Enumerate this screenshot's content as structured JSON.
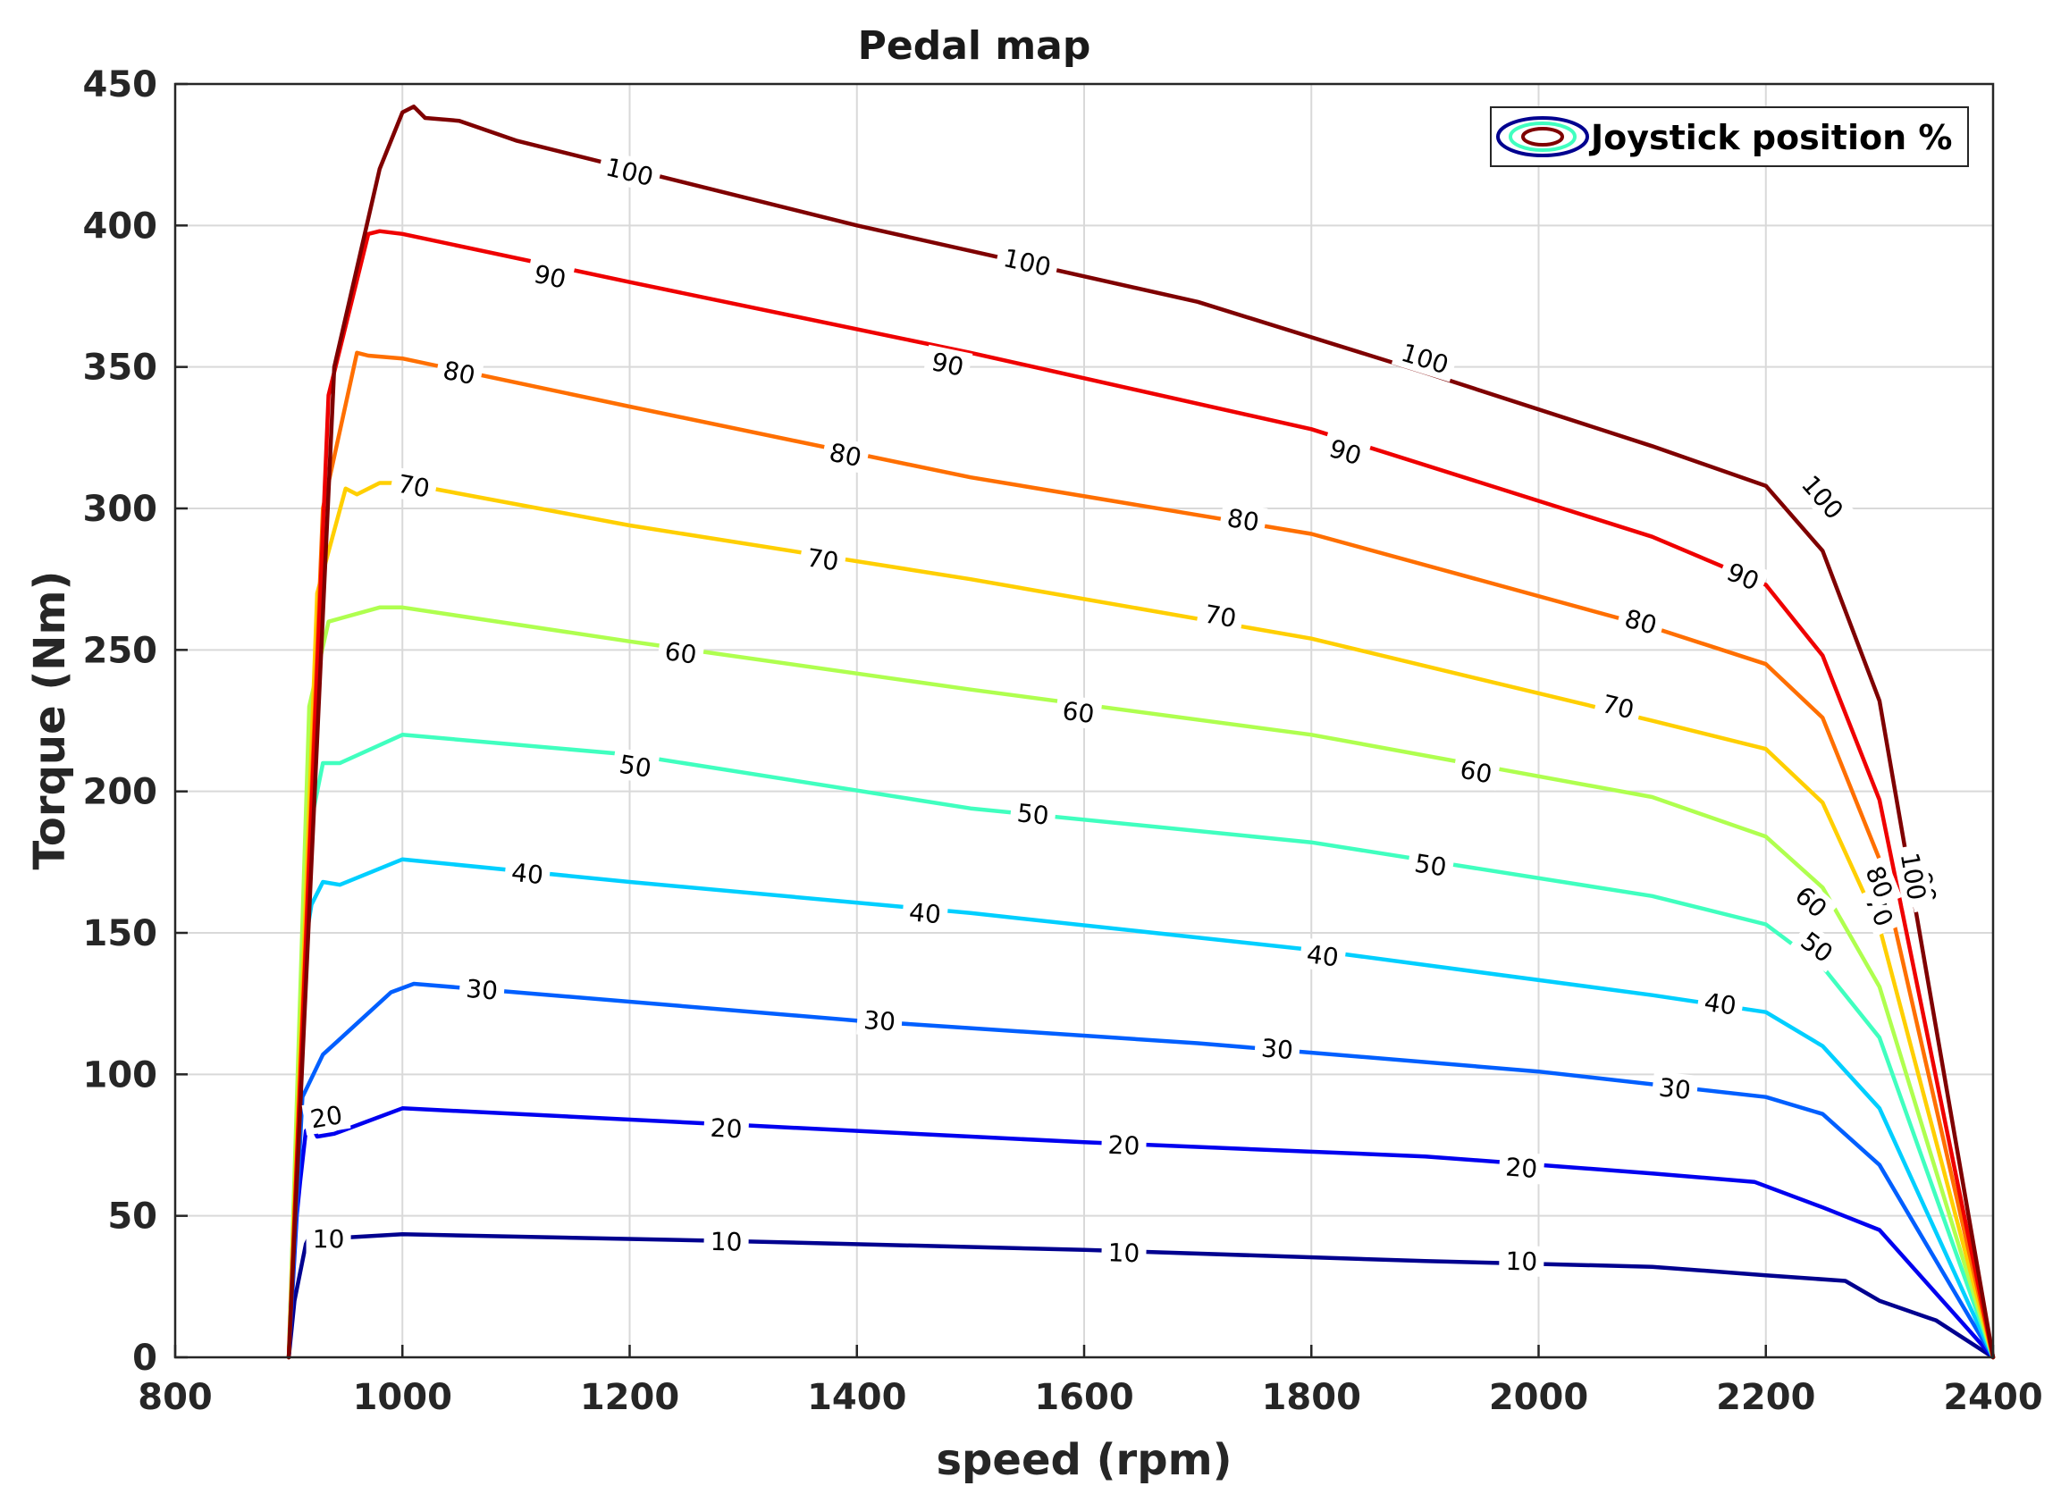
{
  "chart_data": {
    "type": "line",
    "title": "Pedal map",
    "xlabel": "speed (rpm)",
    "ylabel": "Torque (Nm)",
    "xlim": [
      800,
      2400
    ],
    "ylim": [
      0,
      450
    ],
    "x_ticks": [
      800,
      1000,
      1200,
      1400,
      1600,
      1800,
      2000,
      2200,
      2400
    ],
    "y_ticks": [
      0,
      50,
      100,
      150,
      200,
      250,
      300,
      350,
      400,
      450
    ],
    "grid": true,
    "legend": {
      "label": "Joystick position %",
      "placement": "top-right"
    },
    "series": [
      {
        "name": "10",
        "color": "#00008f",
        "points": [
          [
            900,
            0
          ],
          [
            905,
            20
          ],
          [
            915,
            40
          ],
          [
            920,
            44
          ],
          [
            925,
            42
          ],
          [
            935,
            42
          ],
          [
            1000,
            43.5
          ],
          [
            1300,
            41
          ],
          [
            1600,
            38
          ],
          [
            1900,
            34
          ],
          [
            2100,
            32
          ],
          [
            2200,
            29
          ],
          [
            2270,
            27
          ],
          [
            2300,
            20
          ],
          [
            2350,
            13
          ],
          [
            2400,
            0
          ]
        ],
        "labels": [
          [
            935,
            42
          ],
          [
            1285,
            41
          ],
          [
            1635,
            37
          ],
          [
            1985,
            34
          ]
        ]
      },
      {
        "name": "20",
        "color": "#0000ef",
        "points": [
          [
            900,
            0
          ],
          [
            907,
            50
          ],
          [
            910,
            62
          ],
          [
            915,
            80
          ],
          [
            920,
            82
          ],
          [
            925,
            78
          ],
          [
            940,
            79
          ],
          [
            1000,
            88
          ],
          [
            1300,
            82
          ],
          [
            1600,
            76
          ],
          [
            1900,
            71
          ],
          [
            2100,
            65
          ],
          [
            2190,
            62
          ],
          [
            2250,
            53
          ],
          [
            2300,
            45
          ],
          [
            2400,
            0
          ]
        ],
        "labels": [
          [
            933,
            85
          ],
          [
            1285,
            81
          ],
          [
            1635,
            75
          ],
          [
            1985,
            67
          ]
        ]
      },
      {
        "name": "30",
        "color": "#005fff",
        "points": [
          [
            900,
            0
          ],
          [
            912,
            92
          ],
          [
            930,
            107
          ],
          [
            990,
            129
          ],
          [
            1010,
            132
          ],
          [
            1100,
            129
          ],
          [
            1400,
            119
          ],
          [
            1700,
            111
          ],
          [
            2000,
            101
          ],
          [
            2200,
            92
          ],
          [
            2250,
            86
          ],
          [
            2300,
            68
          ],
          [
            2400,
            0
          ]
        ],
        "labels": [
          [
            1070,
            130
          ],
          [
            1420,
            119
          ],
          [
            1770,
            109
          ],
          [
            2120,
            95
          ]
        ]
      },
      {
        "name": "40",
        "color": "#00cfff",
        "points": [
          [
            900,
            0
          ],
          [
            912,
            140
          ],
          [
            920,
            160
          ],
          [
            930,
            168
          ],
          [
            945,
            167
          ],
          [
            1000,
            176
          ],
          [
            1200,
            168
          ],
          [
            1500,
            157
          ],
          [
            1800,
            144
          ],
          [
            2100,
            128
          ],
          [
            2200,
            122
          ],
          [
            2250,
            110
          ],
          [
            2300,
            88
          ],
          [
            2400,
            0
          ]
        ],
        "labels": [
          [
            1110,
            171
          ],
          [
            1460,
            157
          ],
          [
            1810,
            142
          ],
          [
            2160,
            125
          ]
        ]
      },
      {
        "name": "50",
        "color": "#40ffbf",
        "points": [
          [
            900,
            0
          ],
          [
            915,
            180
          ],
          [
            930,
            210
          ],
          [
            945,
            210
          ],
          [
            1000,
            220
          ],
          [
            1200,
            213
          ],
          [
            1500,
            194
          ],
          [
            1800,
            182
          ],
          [
            2100,
            163
          ],
          [
            2200,
            153
          ],
          [
            2250,
            138
          ],
          [
            2300,
            113
          ],
          [
            2400,
            0
          ]
        ],
        "labels": [
          [
            1205,
            209
          ],
          [
            1555,
            192
          ],
          [
            1905,
            174
          ],
          [
            2245,
            145
          ]
        ]
      },
      {
        "name": "60",
        "color": "#afff4f",
        "points": [
          [
            900,
            0
          ],
          [
            918,
            230
          ],
          [
            935,
            260
          ],
          [
            980,
            265
          ],
          [
            1000,
            265
          ],
          [
            1200,
            253
          ],
          [
            1500,
            236
          ],
          [
            1800,
            220
          ],
          [
            2100,
            198
          ],
          [
            2200,
            184
          ],
          [
            2250,
            166
          ],
          [
            2300,
            131
          ],
          [
            2400,
            0
          ]
        ],
        "labels": [
          [
            1245,
            249
          ],
          [
            1595,
            228
          ],
          [
            1945,
            207
          ],
          [
            2240,
            161
          ]
        ]
      },
      {
        "name": "70",
        "color": "#ffcf00",
        "points": [
          [
            900,
            0
          ],
          [
            925,
            270
          ],
          [
            950,
            307
          ],
          [
            960,
            305
          ],
          [
            980,
            309
          ],
          [
            1000,
            309
          ],
          [
            1200,
            294
          ],
          [
            1500,
            275
          ],
          [
            1800,
            254
          ],
          [
            2100,
            225
          ],
          [
            2200,
            215
          ],
          [
            2250,
            196
          ],
          [
            2300,
            152
          ],
          [
            2400,
            0
          ]
        ],
        "labels": [
          [
            1010,
            308
          ],
          [
            1370,
            282
          ],
          [
            1720,
            262
          ],
          [
            2070,
            230
          ],
          [
            2300,
            158
          ]
        ]
      },
      {
        "name": "80",
        "color": "#ff6f00",
        "points": [
          [
            900,
            0
          ],
          [
            930,
            300
          ],
          [
            960,
            355
          ],
          [
            970,
            354
          ],
          [
            1000,
            353
          ],
          [
            1200,
            336
          ],
          [
            1500,
            311
          ],
          [
            1800,
            291
          ],
          [
            2100,
            258
          ],
          [
            2200,
            245
          ],
          [
            2250,
            226
          ],
          [
            2300,
            176
          ],
          [
            2400,
            0
          ]
        ],
        "labels": [
          [
            1050,
            348
          ],
          [
            1390,
            319
          ],
          [
            1740,
            296
          ],
          [
            2090,
            260
          ],
          [
            2300,
            168
          ]
        ]
      },
      {
        "name": "90",
        "color": "#ef0000",
        "points": [
          [
            900,
            0
          ],
          [
            935,
            340
          ],
          [
            970,
            397
          ],
          [
            980,
            398
          ],
          [
            1000,
            397
          ],
          [
            1200,
            380
          ],
          [
            1500,
            355
          ],
          [
            1800,
            328
          ],
          [
            2100,
            290
          ],
          [
            2200,
            273
          ],
          [
            2250,
            248
          ],
          [
            2300,
            197
          ],
          [
            2400,
            0
          ]
        ],
        "labels": [
          [
            1130,
            382
          ],
          [
            1480,
            351
          ],
          [
            1830,
            320
          ],
          [
            2180,
            276
          ],
          [
            2340,
            166
          ]
        ]
      },
      {
        "name": "100",
        "color": "#7f0000",
        "points": [
          [
            900,
            0
          ],
          [
            940,
            350
          ],
          [
            980,
            420
          ],
          [
            1000,
            440
          ],
          [
            1010,
            442
          ],
          [
            1020,
            438
          ],
          [
            1050,
            437
          ],
          [
            1100,
            430
          ],
          [
            1400,
            400
          ],
          [
            1700,
            373
          ],
          [
            1900,
            348
          ],
          [
            2100,
            322
          ],
          [
            2200,
            308
          ],
          [
            2250,
            285
          ],
          [
            2300,
            232
          ],
          [
            2400,
            0
          ]
        ],
        "labels": [
          [
            1200,
            419
          ],
          [
            1550,
            387
          ],
          [
            1900,
            353
          ],
          [
            2250,
            304
          ],
          [
            2330,
            170
          ]
        ]
      }
    ]
  }
}
